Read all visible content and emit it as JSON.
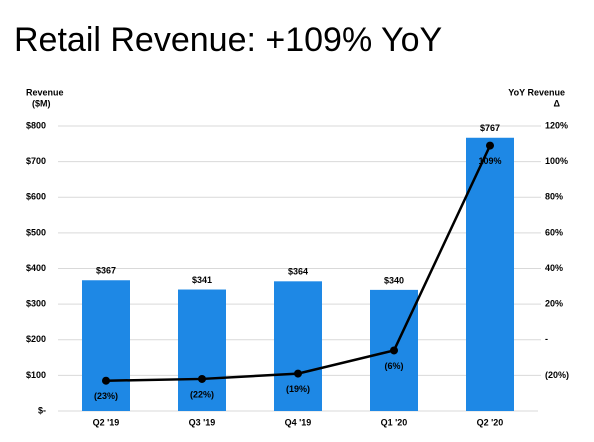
{
  "chart_data": {
    "type": "bar",
    "title": "Retail Revenue: +109% YoY",
    "ylabel": [
      "Revenue",
      "($M)"
    ],
    "y2label": [
      "YoY Revenue",
      "Δ"
    ],
    "categories": [
      "Q2 '19",
      "Q3 '19",
      "Q4 '19",
      "Q1 '20",
      "Q2 '20"
    ],
    "series": [
      {
        "type": "bar",
        "color": "#1e88e5",
        "values": [
          367,
          341,
          364,
          340,
          767
        ],
        "value_labels": [
          "$367",
          "$341",
          "$364",
          "$340",
          "$767"
        ]
      },
      {
        "type": "line",
        "axis": "y2",
        "color": "#000000",
        "values": [
          -23,
          -22,
          -19,
          -6,
          109
        ],
        "value_labels": [
          "(23%)",
          "(22%)",
          "(19%)",
          "(6%)",
          "109%"
        ]
      }
    ],
    "ylim": [
      0,
      800
    ],
    "yticks": [
      {
        "value": 0,
        "label": "$-"
      },
      {
        "value": 100,
        "label": "$100"
      },
      {
        "value": 200,
        "label": "$200"
      },
      {
        "value": 300,
        "label": "$300"
      },
      {
        "value": 400,
        "label": "$400"
      },
      {
        "value": 500,
        "label": "$500"
      },
      {
        "value": 600,
        "label": "$600"
      },
      {
        "value": 700,
        "label": "$700"
      },
      {
        "value": 800,
        "label": "$800"
      }
    ],
    "y2lim": [
      -40,
      120
    ],
    "y2ticks": [
      {
        "value": -20,
        "label": "(20%)"
      },
      {
        "value": 0,
        "label": "-"
      },
      {
        "value": 20,
        "label": "20%"
      },
      {
        "value": 40,
        "label": "40%"
      },
      {
        "value": 60,
        "label": "60%"
      },
      {
        "value": 80,
        "label": "80%"
      },
      {
        "value": 100,
        "label": "100%"
      },
      {
        "value": 120,
        "label": "120%"
      }
    ],
    "grid": true
  }
}
